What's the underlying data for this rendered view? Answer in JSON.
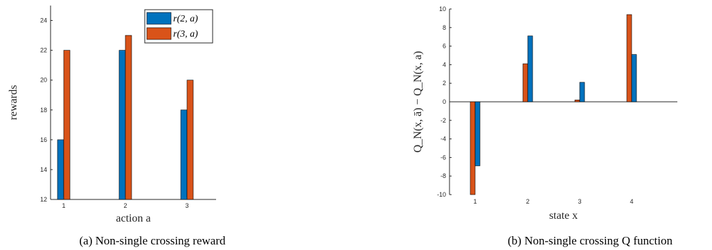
{
  "colors": {
    "blue": "#0072BD",
    "orange": "#D95319",
    "axis": "#262626"
  },
  "chart_data": [
    {
      "type": "bar",
      "caption": "(a) Non-single crossing reward",
      "xlabel": "action a",
      "ylabel": "rewards",
      "categories": [
        "1",
        "2",
        "3"
      ],
      "ylim": [
        12,
        25
      ],
      "yticks": [
        12,
        14,
        16,
        18,
        20,
        22,
        24
      ],
      "grid": false,
      "legend_placement": "top-right",
      "series": [
        {
          "name": "r(2, a)",
          "color": "#0072BD",
          "values": [
            16,
            22,
            18
          ]
        },
        {
          "name": "r(3, a)",
          "color": "#D95319",
          "values": [
            22,
            23,
            20
          ]
        }
      ]
    },
    {
      "type": "bar",
      "caption": "(b) Non-single crossing Q function",
      "xlabel": "state x",
      "ylabel": "Q_N(x, ā) − Q_N(x, a)",
      "categories": [
        "1",
        "2",
        "3",
        "4"
      ],
      "ylim": [
        -10,
        10
      ],
      "yticks": [
        -10,
        -8,
        -6,
        -4,
        -2,
        0,
        2,
        4,
        6,
        8,
        10
      ],
      "grid": false,
      "series": [
        {
          "color": "#D95319",
          "values": [
            -10,
            4.1,
            0.2,
            9.4
          ]
        },
        {
          "color": "#0072BD",
          "values": [
            -6.9,
            7.1,
            2.1,
            5.1
          ]
        }
      ]
    }
  ]
}
